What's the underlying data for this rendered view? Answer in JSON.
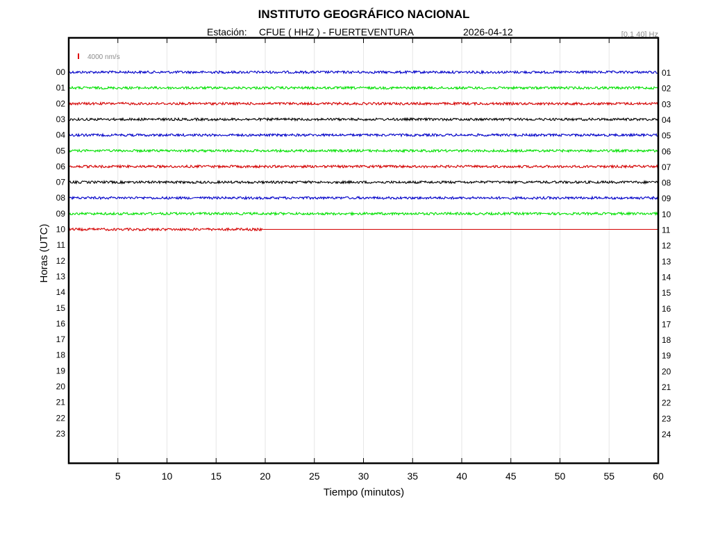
{
  "header": {
    "title": "INSTITUTO GEOGRÁFICO NACIONAL",
    "station_prefix": "Estación:",
    "station_name": "CFUE ( HHZ ) - FUERTEVENTURA",
    "date": "2026-04-12",
    "filter": "[0.1 40] Hz"
  },
  "scale": {
    "label": "4000 nm/s",
    "color": "#e00000"
  },
  "chart_data": {
    "type": "line",
    "title": "INSTITUTO GEOGRÁFICO NACIONAL",
    "xlabel": "Tiempo (minutos)",
    "ylabel": "Horas (UTC)",
    "xlim": [
      0,
      60
    ],
    "x_ticks": [
      "5",
      "10",
      "15",
      "20",
      "25",
      "30",
      "35",
      "40",
      "45",
      "50",
      "55",
      "60"
    ],
    "x_grid": true,
    "left_labels": [
      "00",
      "01",
      "02",
      "03",
      "04",
      "05",
      "06",
      "07",
      "08",
      "09",
      "10",
      "11",
      "12",
      "13",
      "14",
      "15",
      "16",
      "17",
      "18",
      "19",
      "20",
      "21",
      "22",
      "23"
    ],
    "right_labels": [
      "01",
      "02",
      "03",
      "04",
      "05",
      "06",
      "07",
      "08",
      "09",
      "10",
      "11",
      "12",
      "13",
      "14",
      "15",
      "16",
      "17",
      "18",
      "19",
      "20",
      "21",
      "22",
      "23",
      "24"
    ],
    "trace_colors": [
      "#0000c8",
      "#00e000",
      "#d40000",
      "#000000"
    ],
    "traces": [
      {
        "hour": "00",
        "color": "#0000c8",
        "data_end_min": 60
      },
      {
        "hour": "01",
        "color": "#00e000",
        "data_end_min": 60
      },
      {
        "hour": "02",
        "color": "#d40000",
        "data_end_min": 60
      },
      {
        "hour": "03",
        "color": "#000000",
        "data_end_min": 60
      },
      {
        "hour": "04",
        "color": "#0000c8",
        "data_end_min": 60
      },
      {
        "hour": "05",
        "color": "#00e000",
        "data_end_min": 60
      },
      {
        "hour": "06",
        "color": "#d40000",
        "data_end_min": 60
      },
      {
        "hour": "07",
        "color": "#000000",
        "data_end_min": 60
      },
      {
        "hour": "08",
        "color": "#0000c8",
        "data_end_min": 60
      },
      {
        "hour": "09",
        "color": "#00e000",
        "data_end_min": 60
      },
      {
        "hour": "10",
        "color": "#d40000",
        "data_end_min": 19.8
      }
    ]
  }
}
